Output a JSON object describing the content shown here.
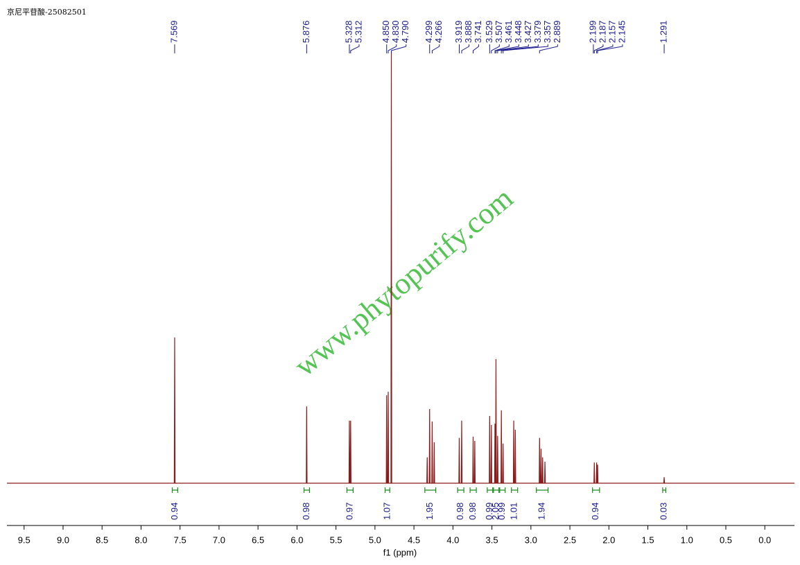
{
  "chart_data": {
    "type": "line",
    "title": "京尼平苷酸-25082501",
    "xlabel": "f1 (ppm)",
    "watermark": "www.phytopurify.com",
    "xlim": [
      9.72,
      -0.38
    ],
    "ylim": [
      0,
      100
    ],
    "xticks": [
      9.5,
      {
        "value": 9,
        "label": "9.0"
      },
      8.5,
      {
        "value": 8,
        "label": "8.0"
      },
      7.5,
      {
        "value": 7,
        "label": "7.0"
      },
      6.5,
      {
        "value": 6,
        "label": "6.0"
      },
      5.5,
      {
        "value": 5,
        "label": "5.0"
      },
      4.5,
      {
        "value": 4,
        "label": "4.0"
      },
      3.5,
      {
        "value": 3,
        "label": "3.0"
      },
      2.5,
      {
        "value": 2,
        "label": "2.0"
      },
      1.5,
      {
        "value": 1,
        "label": "1.0"
      },
      0.5,
      {
        "value": 0,
        "label": "0.0"
      }
    ],
    "x": [
      9.72,
      7.574,
      7.569,
      7.564,
      5.881,
      5.876,
      5.871,
      5.333,
      5.328,
      5.323,
      5.317,
      5.312,
      5.307,
      4.855,
      4.85,
      4.845,
      4.835,
      4.83,
      4.825,
      4.795,
      4.79,
      4.785,
      4.335,
      4.33,
      4.325,
      4.304,
      4.299,
      4.294,
      4.271,
      4.266,
      4.261,
      4.245,
      4.24,
      4.235,
      3.924,
      3.919,
      3.914,
      3.893,
      3.888,
      3.883,
      3.746,
      3.741,
      3.736,
      3.725,
      3.72,
      3.715,
      3.534,
      3.529,
      3.524,
      3.512,
      3.507,
      3.502,
      3.466,
      3.461,
      3.456,
      3.453,
      3.448,
      3.443,
      3.432,
      3.427,
      3.422,
      3.384,
      3.379,
      3.374,
      3.362,
      3.357,
      3.352,
      3.225,
      3.22,
      3.215,
      3.205,
      3.2,
      3.195,
      2.894,
      2.889,
      2.884,
      2.875,
      2.87,
      2.865,
      2.855,
      2.85,
      2.845,
      2.825,
      2.82,
      2.815,
      2.192,
      2.187,
      2.182,
      2.162,
      2.157,
      2.152,
      2.15,
      2.145,
      2.14,
      1.296,
      1.291,
      1.286,
      -0.38
    ],
    "series": [
      {
        "color": "#8b1a1a",
        "values": [
          0,
          0,
          33.8,
          0,
          0,
          17.8,
          0,
          0,
          14.5,
          0,
          0,
          14.5,
          0,
          0,
          20.4,
          0,
          0,
          21.2,
          0,
          0,
          100,
          0,
          0,
          6,
          0,
          0,
          17.2,
          0,
          0,
          14.3,
          0,
          0,
          9.5,
          0,
          0,
          10.5,
          0,
          0,
          14.5,
          0,
          0,
          10.8,
          0,
          0,
          9.8,
          0,
          0,
          15.6,
          0,
          0,
          13.5,
          0,
          0,
          13.8,
          0,
          0,
          28.8,
          0,
          0,
          11,
          0,
          0,
          16.9,
          0,
          0,
          9.2,
          0,
          0,
          14.5,
          0,
          0,
          12.4,
          0,
          0,
          10.5,
          0,
          0,
          8,
          0,
          0,
          6,
          0,
          0,
          5,
          0,
          0,
          4.8,
          0,
          0,
          4.8,
          0,
          0,
          4.3,
          0,
          0,
          1.4,
          0,
          0
        ]
      }
    ],
    "peak_labels": [
      7.569,
      5.876,
      5.328,
      5.312,
      {
        "value": 4.85,
        "label": "4.850"
      },
      {
        "value": 4.83,
        "label": "4.830"
      },
      {
        "value": 4.79,
        "label": "4.790"
      },
      4.299,
      4.266,
      3.919,
      3.888,
      3.741,
      3.529,
      3.507,
      3.461,
      3.448,
      3.427,
      3.379,
      3.357,
      2.889,
      2.199,
      2.187,
      2.157,
      2.145,
      1.291
    ],
    "integrals": [
      {
        "from": 7.6,
        "to": 7.53,
        "value": 0.94
      },
      {
        "from": 5.91,
        "to": 5.84,
        "value": 0.98
      },
      {
        "from": 5.36,
        "to": 5.28,
        "value": 0.97
      },
      {
        "from": 4.87,
        "to": 4.81,
        "value": 1.07
      },
      {
        "from": 4.36,
        "to": 4.22,
        "value": 1.95
      },
      {
        "from": 3.94,
        "to": 3.86,
        "value": 0.98
      },
      {
        "from": 3.78,
        "to": 3.7,
        "value": 0.98
      },
      {
        "from": 3.56,
        "to": 3.49,
        "value": 0.99
      },
      {
        "from": 3.48,
        "to": 3.41,
        "value": 2.05
      },
      {
        "from": 3.4,
        "to": 3.33,
        "value": 0.99
      },
      {
        "from": 3.25,
        "to": 3.17,
        "value": 1.01
      },
      {
        "from": 2.93,
        "to": 2.78,
        "value": 1.94
      },
      {
        "from": 2.21,
        "to": 2.12,
        "value": 0.94
      },
      {
        "from": 1.31,
        "to": 1.27,
        "value": 0.03
      }
    ]
  }
}
